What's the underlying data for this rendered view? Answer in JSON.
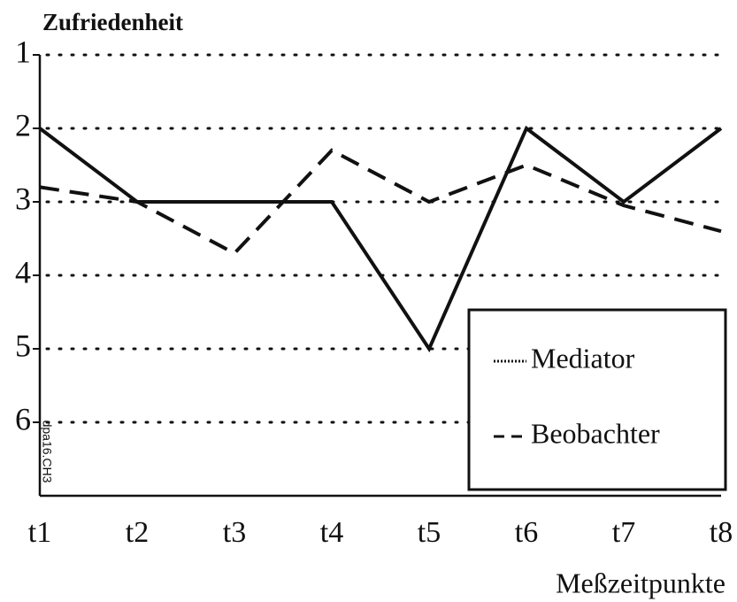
{
  "chart_data": {
    "type": "line",
    "title": "Zufriedenheit",
    "x_label": "Meßzeitpunkte",
    "annotation": "dpa16.CH3",
    "categories": [
      "t1",
      "t2",
      "t3",
      "t4",
      "t5",
      "t6",
      "t7",
      "t8"
    ],
    "series": [
      {
        "name": "Mediator",
        "color": "#111111",
        "dash": "solid",
        "values": [
          2,
          3,
          3,
          3,
          5,
          2,
          3,
          2
        ]
      },
      {
        "name": "Beobachter",
        "color": "#111111",
        "dash": "dashed",
        "values": [
          2.8,
          3.0,
          3.7,
          2.3,
          3.0,
          2.5,
          3.05,
          3.4
        ]
      }
    ],
    "ylim": [
      1,
      7
    ],
    "y_inverted": true,
    "yticks": [
      1,
      2,
      3,
      4,
      5,
      6
    ],
    "grid": true,
    "legend": "lower right"
  }
}
